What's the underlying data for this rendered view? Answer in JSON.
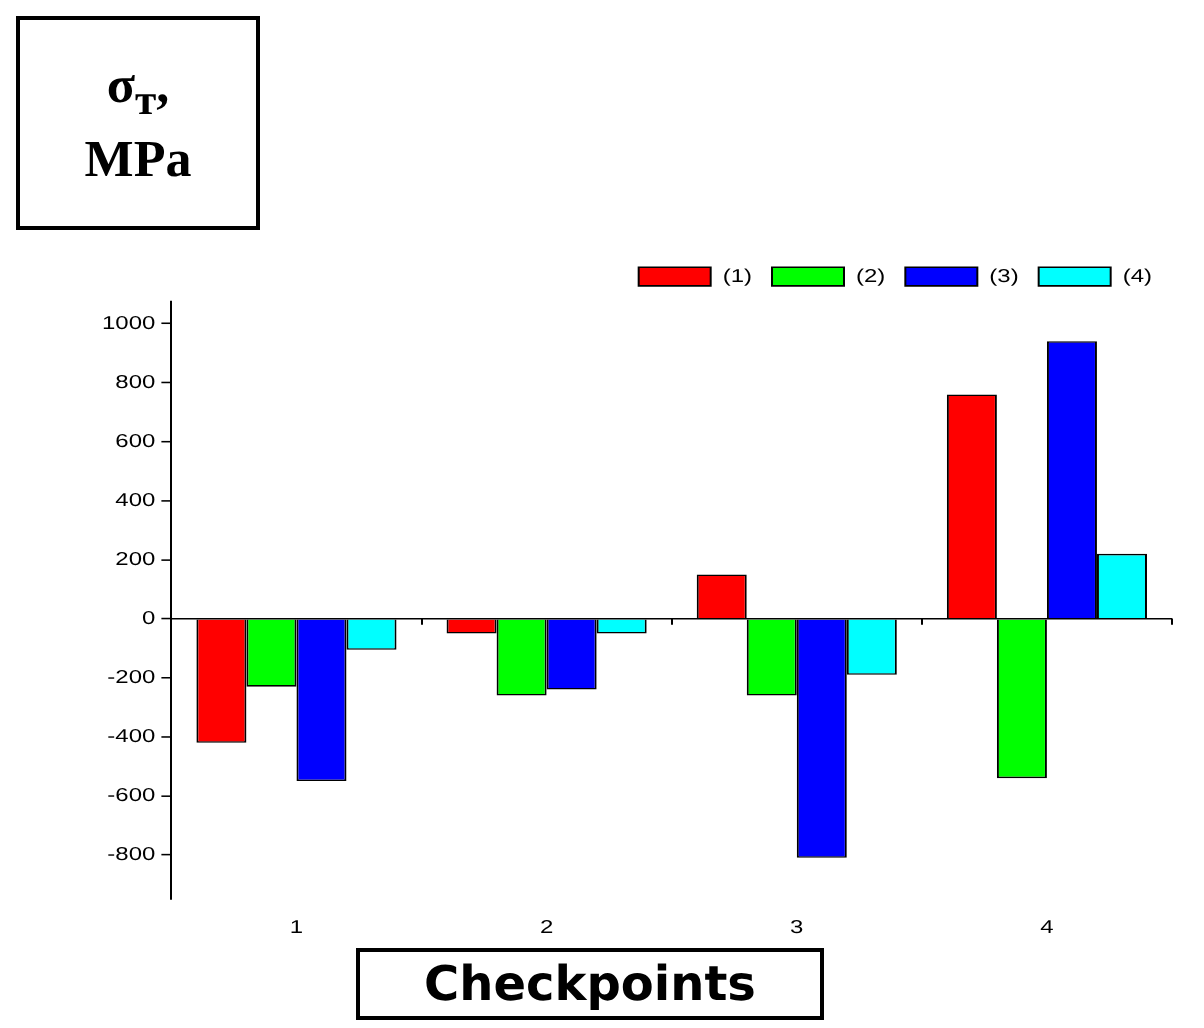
{
  "chart_data": {
    "type": "bar",
    "ylabel": "σ$_{т}$, MPa",
    "xlabel": "Checkpoints",
    "categories": [
      "1",
      "2",
      "3",
      "4"
    ],
    "series": [
      {
        "name": "(1)",
        "color": "#ff0000",
        "values": [
          -420,
          -50,
          150,
          760
        ]
      },
      {
        "name": "(2)",
        "color": "#00ff00",
        "values": [
          -230,
          -260,
          -260,
          -540
        ]
      },
      {
        "name": "(3)",
        "color": "#0000ff",
        "values": [
          -550,
          -240,
          -810,
          940
        ]
      },
      {
        "name": "(4)",
        "color": "#00ffff",
        "values": [
          -105,
          -50,
          -190,
          220
        ]
      }
    ],
    "ylim": [
      -950,
      1075
    ],
    "yticks": [
      -800,
      -600,
      -400,
      -200,
      0,
      200,
      400,
      600,
      800,
      1000
    ],
    "ref_lines": [
      {
        "axis": "y",
        "value": 0,
        "color": "#000000"
      }
    ],
    "grid": false,
    "legend": "top right"
  }
}
